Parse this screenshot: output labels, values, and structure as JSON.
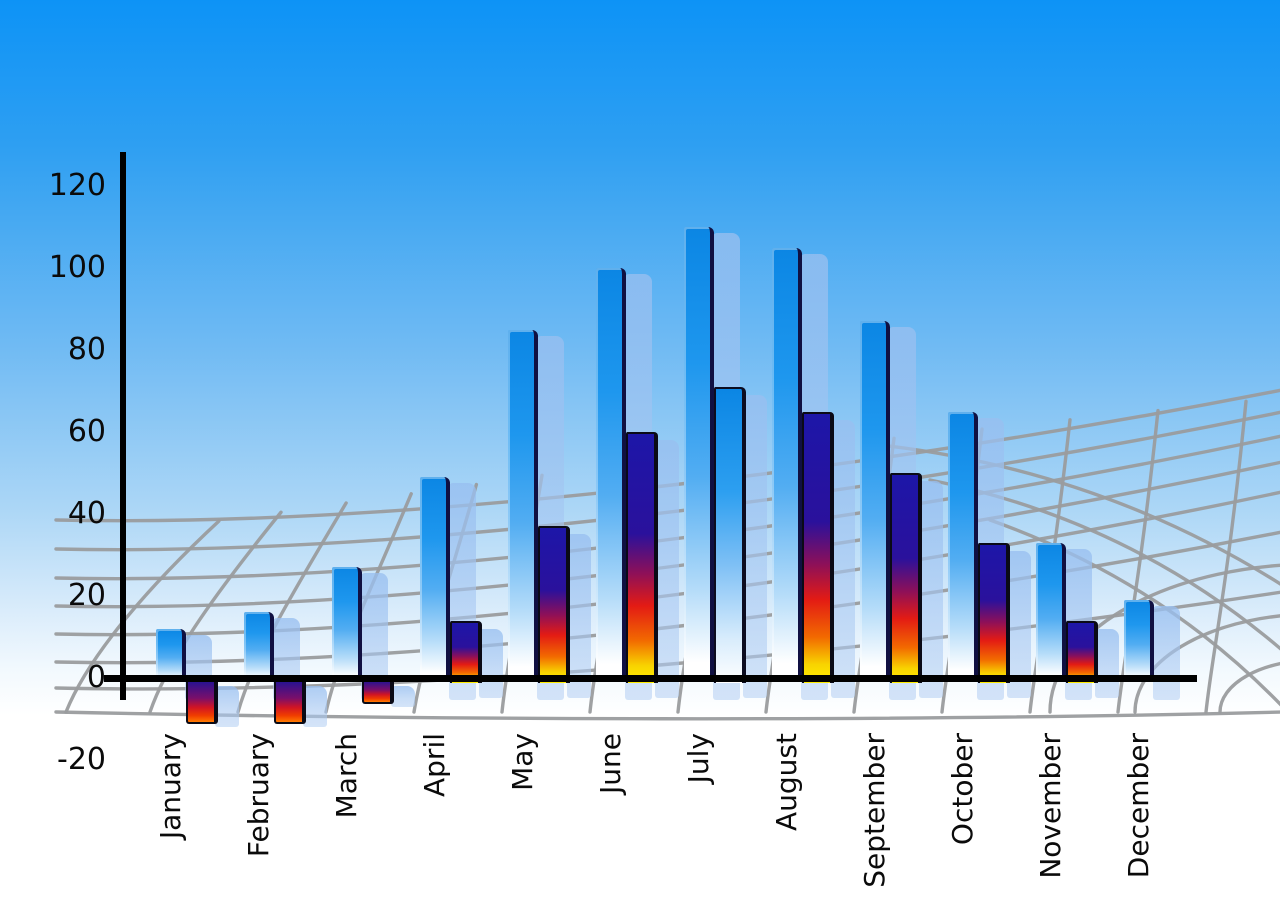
{
  "chart_data": {
    "type": "bar",
    "title": "",
    "xlabel": "",
    "ylabel": "",
    "categories": [
      "January",
      "February",
      "March",
      "April",
      "May",
      "June",
      "July",
      "August",
      "September",
      "October",
      "November",
      "December"
    ],
    "series": [
      {
        "name": "primary-blue-series",
        "style": "blue",
        "values": [
          12,
          16,
          27,
          49,
          85,
          100,
          110,
          105,
          87,
          65,
          33,
          19
        ]
      },
      {
        "name": "secondary-fire-series",
        "style": "fire",
        "values": [
          -10,
          -10,
          -5,
          14,
          37,
          60,
          71,
          65,
          50,
          33,
          14,
          null
        ],
        "style_overrides": {
          "6": "blue"
        }
      }
    ],
    "yticks": [
      120,
      100,
      80,
      60,
      40,
      20,
      0,
      -20
    ],
    "ylim": [
      -20,
      120
    ],
    "legend": "none",
    "grid": "gray curved perspective backdrop behind bars",
    "bar_effects": "each bar casts a translucent light-blue offset shadow bar"
  },
  "colors": {
    "sky_top": "#0d93f6",
    "sky_bottom": "#ffffff",
    "bar_blue": "#0b86e4",
    "bar_fade": "#ffffff",
    "bar_shadow": "#a9c6ee",
    "fire_navy": "#1d16a8",
    "fire_red": "#e31b14",
    "fire_yellow": "#ffee00",
    "grid_line": "#9a9c9e",
    "axis": "#000000",
    "label_text": "#0b0b0b"
  }
}
